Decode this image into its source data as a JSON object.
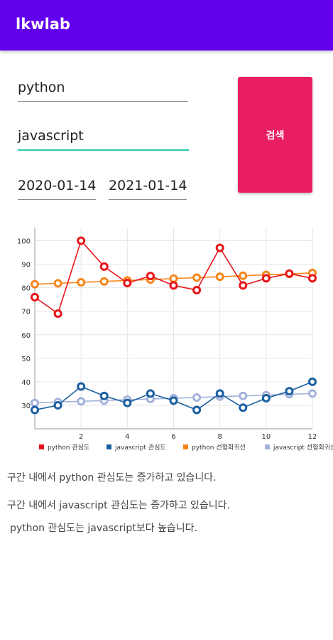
{
  "app": {
    "title": "lkwlab"
  },
  "form": {
    "keyword1": "python",
    "keyword2": "javascript",
    "start_date": "2020-01-14",
    "end_date": "2021-01-14",
    "search_label": "검색"
  },
  "chart_data": {
    "type": "line",
    "x": [
      0,
      1,
      2,
      3,
      4,
      5,
      6,
      7,
      8,
      9,
      10,
      11,
      12
    ],
    "x_ticks": [
      "2",
      "4",
      "6",
      "8",
      "10",
      "12"
    ],
    "y_ticks": [
      "30",
      "40",
      "50",
      "60",
      "70",
      "80",
      "90",
      "100"
    ],
    "xlim": [
      0,
      12
    ],
    "ylim": [
      20,
      105
    ],
    "grid": true,
    "legend_position": "bottom",
    "series": [
      {
        "name": "python 관심도",
        "color": "#e8151b",
        "style": "line",
        "values": [
          76,
          69,
          100,
          89,
          82,
          85,
          81,
          79,
          97,
          81,
          84,
          86,
          84
        ]
      },
      {
        "name": "javascript 관심도",
        "color": "#1a5fa0",
        "style": "line",
        "values": [
          28,
          30,
          38,
          34,
          31,
          35,
          32,
          28,
          35,
          29,
          33,
          36,
          40
        ]
      },
      {
        "name": "python 선형회귀선",
        "color": "#f7851b",
        "style": "regression",
        "values": [
          81.5,
          81.9,
          82.3,
          82.7,
          83.1,
          83.5,
          83.9,
          84.3,
          84.7,
          85.1,
          85.5,
          85.9,
          86.3
        ]
      },
      {
        "name": "javascript 선형회귀선",
        "color": "#a3b2db",
        "style": "regression",
        "values": [
          31.0,
          31.4,
          31.7,
          32.0,
          32.4,
          32.7,
          33.0,
          33.3,
          33.7,
          34.0,
          34.3,
          34.7,
          35.0
        ]
      }
    ]
  },
  "results": {
    "line1": "구간 내에서 python 관심도는 증가하고 있습니다.",
    "line2": "구간 내에서 javascript 관심도는 증가하고 있습니다.",
    "line3": "python 관심도는 javascript보다 높습니다."
  }
}
